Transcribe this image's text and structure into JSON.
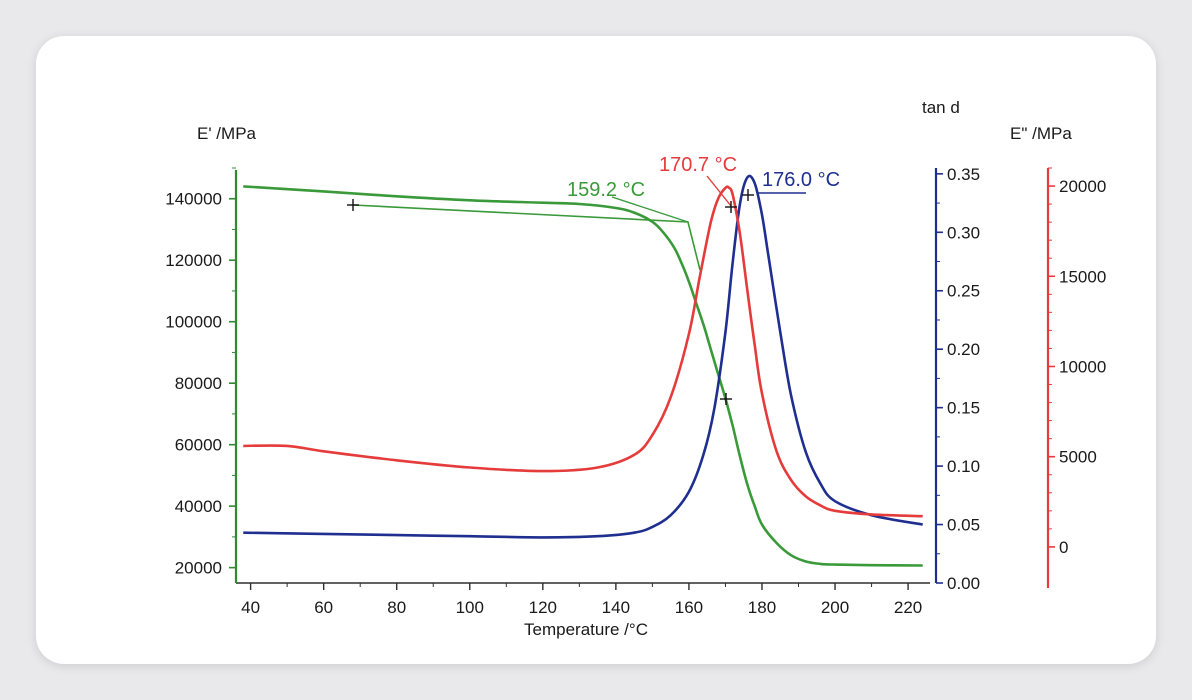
{
  "chart_data": {
    "type": "line",
    "title": "",
    "xlabel": "Temperature /°C",
    "xlim": [
      36,
      226
    ],
    "x_ticks": [
      40,
      60,
      80,
      100,
      120,
      140,
      160,
      180,
      200,
      220
    ],
    "axes": {
      "left": {
        "label": "E' /MPa",
        "color": "#2e8b2e",
        "ylim": [
          15000,
          150000
        ],
        "ticks": [
          20000,
          40000,
          60000,
          80000,
          100000,
          120000,
          140000
        ]
      },
      "right1": {
        "label": "tan d",
        "color": "#1f2f8f",
        "ylim": [
          0,
          0.355
        ],
        "ticks": [
          "0.00",
          "0.05",
          "0.10",
          "0.15",
          "0.20",
          "0.25",
          "0.30",
          "0.35"
        ]
      },
      "right2": {
        "label": "E\" /MPa",
        "color": "#e53b3b",
        "ylim": [
          -2000,
          21000
        ],
        "ticks": [
          0,
          5000,
          10000,
          15000,
          20000
        ]
      }
    },
    "series": [
      {
        "axis": "left",
        "color": "#3a9a3a",
        "x": [
          38,
          60,
          80,
          100,
          120,
          130,
          140,
          145,
          150,
          153,
          156,
          158,
          160,
          162,
          164,
          166,
          168,
          170,
          172,
          174,
          176,
          178,
          180,
          184,
          188,
          192,
          196,
          200,
          210,
          224
        ],
        "y": [
          144000,
          142400,
          140800,
          139500,
          138700,
          138300,
          137000,
          135500,
          132500,
          129000,
          124000,
          119000,
          113000,
          106000,
          99000,
          91000,
          83000,
          75000,
          66000,
          56000,
          47000,
          40000,
          34000,
          28000,
          24000,
          22000,
          21200,
          21000,
          20800,
          20700
        ]
      },
      {
        "axis": "right1",
        "color": "#1f2f8f",
        "x": [
          38,
          60,
          80,
          100,
          120,
          135,
          145,
          150,
          155,
          160,
          164,
          167,
          170,
          172,
          174,
          176,
          178,
          180,
          182,
          185,
          188,
          192,
          196,
          200,
          210,
          224
        ],
        "y": [
          0.043,
          0.042,
          0.041,
          0.04,
          0.039,
          0.04,
          0.043,
          0.048,
          0.058,
          0.078,
          0.11,
          0.15,
          0.215,
          0.275,
          0.325,
          0.347,
          0.342,
          0.315,
          0.275,
          0.215,
          0.16,
          0.112,
          0.085,
          0.07,
          0.058,
          0.05
        ]
      },
      {
        "axis": "right2",
        "color": "#e53b3b",
        "x": [
          38,
          50,
          60,
          80,
          100,
          120,
          135,
          145,
          150,
          155,
          160,
          163,
          166,
          168,
          170,
          171,
          172,
          174,
          176,
          178,
          180,
          184,
          188,
          192,
          196,
          200,
          210,
          224
        ],
        "y": [
          5600,
          5600,
          5300,
          4800,
          4400,
          4200,
          4400,
          5100,
          6200,
          8300,
          11800,
          15000,
          18000,
          19300,
          19900,
          19900,
          19500,
          17300,
          14200,
          11200,
          8500,
          5300,
          3700,
          2800,
          2300,
          2000,
          1800,
          1700
        ]
      }
    ],
    "annotations": [
      {
        "text": "159.2 °C",
        "color": "#3a9a3a"
      },
      {
        "text": "170.7 °C",
        "color": "#e53b3b"
      },
      {
        "text": "176.0 °C",
        "color": "#1f2f8f"
      }
    ]
  }
}
